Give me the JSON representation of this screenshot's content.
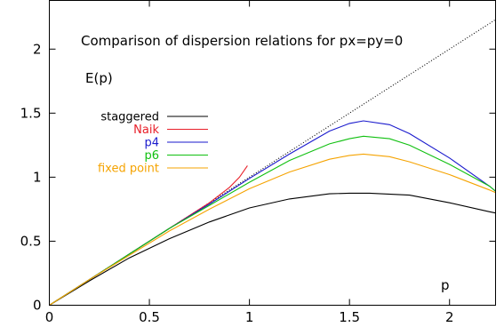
{
  "chart_data": {
    "type": "line",
    "title": "Comparison of dispersion relations for px=py=0",
    "xlabel": "p",
    "ylabel": "E(p)",
    "xlim": [
      0,
      2.23
    ],
    "ylim": [
      0,
      2.38
    ],
    "grid": false,
    "legend_position": "left",
    "x_ticks": [
      {
        "value": 0,
        "label": "0"
      },
      {
        "value": 0.5,
        "label": "0.5"
      },
      {
        "value": 1,
        "label": "1"
      },
      {
        "value": 1.5,
        "label": "1.5"
      },
      {
        "value": 2,
        "label": "2"
      }
    ],
    "y_ticks": [
      {
        "value": 0,
        "label": "0"
      },
      {
        "value": 0.5,
        "label": "0.5"
      },
      {
        "value": 1,
        "label": "1"
      },
      {
        "value": 1.5,
        "label": "1.5"
      },
      {
        "value": 2,
        "label": "2"
      }
    ],
    "series": [
      {
        "name": "",
        "color": "#000000",
        "dashed": true,
        "x": [
          0,
          2.23
        ],
        "y": [
          0,
          2.23
        ]
      },
      {
        "name": "staggered",
        "color": "#000000",
        "x": [
          0,
          0.2,
          0.4,
          0.6,
          0.8,
          1.0,
          1.2,
          1.4,
          1.5,
          1.6,
          1.8,
          2.0,
          2.2,
          2.23
        ],
        "y": [
          0,
          0.19,
          0.37,
          0.52,
          0.65,
          0.76,
          0.83,
          0.87,
          0.875,
          0.875,
          0.86,
          0.8,
          0.73,
          0.72
        ]
      },
      {
        "name": "Naik",
        "color": "#e8202a",
        "x": [
          0,
          0.2,
          0.4,
          0.6,
          0.7,
          0.8,
          0.9,
          0.95,
          0.99
        ],
        "y": [
          0,
          0.2,
          0.4,
          0.6,
          0.7,
          0.8,
          0.92,
          1.0,
          1.09
        ]
      },
      {
        "name": "p4",
        "color": "#1a1acd",
        "x": [
          0,
          0.2,
          0.4,
          0.6,
          0.8,
          1.0,
          1.2,
          1.4,
          1.5,
          1.57,
          1.7,
          1.8,
          2.0,
          2.2,
          2.23
        ],
        "y": [
          0,
          0.2,
          0.4,
          0.6,
          0.79,
          0.99,
          1.18,
          1.36,
          1.42,
          1.44,
          1.41,
          1.34,
          1.15,
          0.93,
          0.89
        ]
      },
      {
        "name": "p6",
        "color": "#10c010",
        "x": [
          0,
          0.2,
          0.4,
          0.6,
          0.8,
          1.0,
          1.2,
          1.4,
          1.5,
          1.57,
          1.7,
          1.8,
          2.0,
          2.2,
          2.23
        ],
        "y": [
          0,
          0.2,
          0.4,
          0.6,
          0.78,
          0.96,
          1.13,
          1.26,
          1.3,
          1.32,
          1.3,
          1.25,
          1.1,
          0.93,
          0.89
        ]
      },
      {
        "name": "fixed point",
        "color": "#f5a300",
        "x": [
          0,
          0.2,
          0.4,
          0.6,
          0.8,
          1.0,
          1.2,
          1.4,
          1.5,
          1.57,
          1.7,
          1.8,
          2.0,
          2.2,
          2.23
        ],
        "y": [
          0,
          0.2,
          0.39,
          0.58,
          0.75,
          0.91,
          1.04,
          1.14,
          1.17,
          1.18,
          1.16,
          1.12,
          1.02,
          0.9,
          0.88
        ]
      }
    ]
  }
}
